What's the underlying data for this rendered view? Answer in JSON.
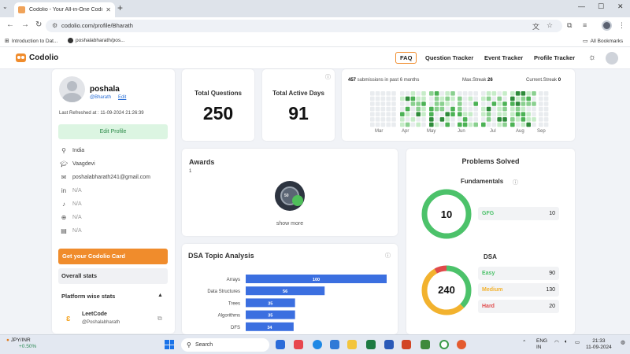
{
  "browser": {
    "tab_title": "Codolio - Your All-in-One Codi",
    "url": "codolio.com/profile/Bharath",
    "bookmarks": [
      "Introduction to Dat...",
      "poshalabharath/pos..."
    ],
    "all_bookmarks": "All Bookmarks"
  },
  "site": {
    "logo": "Codolio",
    "nav": [
      "FAQ",
      "Question Tracker",
      "Event Tracker",
      "Profile Tracker"
    ]
  },
  "profile": {
    "name": "poshala",
    "handle": "@Bharath",
    "edit_link": "Edit",
    "last_refreshed": "Last Refreshed at : 11-09-2024 21:26:39",
    "edit_profile_btn": "Edit Profile",
    "details": [
      {
        "icon": "location-icon",
        "text": "India"
      },
      {
        "icon": "graduation-cap-icon",
        "text": "Vaagdevi"
      },
      {
        "icon": "mail-icon",
        "text": "poshalabharath241@gmail.com"
      },
      {
        "icon": "linkedin-icon",
        "text": "N/A"
      },
      {
        "icon": "twitter-icon",
        "text": "N/A"
      },
      {
        "icon": "globe-icon",
        "text": "N/A"
      },
      {
        "icon": "resume-icon",
        "text": "N/A"
      }
    ],
    "get_card_btn": "Get your Codolio Card",
    "overall_stats": "Overall stats",
    "platform_stats": "Platform wise stats",
    "platform": {
      "name": "LeetCode",
      "user": "@Poshalabharath"
    }
  },
  "stats": {
    "total_questions_label": "Total Questions",
    "total_questions": "250",
    "total_active_days_label": "Total Active Days",
    "total_active_days": "91"
  },
  "heatmap": {
    "submissions": "457",
    "submissions_text": "submissions in past 6 months",
    "max_streak_label": "Max.Streak",
    "max_streak": "26",
    "current_streak_label": "Current.Streak",
    "current_streak": "0",
    "months": [
      "Mar",
      "Apr",
      "May",
      "Jun",
      "Jul",
      "Aug",
      "Sep"
    ]
  },
  "awards": {
    "title": "Awards",
    "count": "1",
    "badge_text": "50",
    "show_more": "show more"
  },
  "dsa_topic": {
    "title": "DSA Topic Analysis"
  },
  "chart_data": {
    "type": "bar",
    "orientation": "horizontal",
    "categories": [
      "Arrays",
      "Data Structures",
      "Trees",
      "Algorithms",
      "DFS"
    ],
    "values": [
      100,
      56,
      35,
      35,
      34
    ],
    "title": "DSA Topic Analysis",
    "bar_color": "#3b6fe0"
  },
  "problems": {
    "title": "Problems Solved",
    "fundamentals_title": "Fundamentals",
    "fundamentals_total": "10",
    "fundamentals_rows": [
      {
        "label": "GFG",
        "value": "10"
      }
    ],
    "dsa_title": "DSA",
    "dsa_total": "240",
    "dsa_rows": [
      {
        "label": "Easy",
        "value": "90",
        "color": "#4cc26a"
      },
      {
        "label": "Medium",
        "value": "130",
        "color": "#f2b22e"
      },
      {
        "label": "Hard",
        "value": "20",
        "color": "#e04a4a"
      }
    ]
  },
  "taskbar": {
    "ticker": "JPY/INR",
    "ticker_change": "+0.50%",
    "search": "Search",
    "lang": "ENG",
    "region": "IN",
    "time": "21:33",
    "date": "11-09-2024"
  },
  "colors": {
    "accent": "#f08c2c",
    "green": "#4cc26a",
    "link": "#2a6fd6"
  }
}
